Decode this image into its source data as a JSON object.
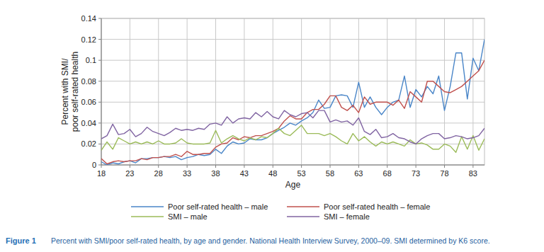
{
  "chart_data": {
    "type": "line",
    "x_label": "Age",
    "y_label": [
      "Percent with SMI/",
      "poor self-rated health"
    ],
    "caption_label": "Figure 1",
    "caption": "Percent with SMI/poor self-rated health, by age and gender. National Health Interview Survey, 2000–09. SMI determined by K6 score.",
    "x": [
      18,
      19,
      20,
      21,
      22,
      23,
      24,
      25,
      26,
      27,
      28,
      29,
      30,
      31,
      32,
      33,
      34,
      35,
      36,
      37,
      38,
      39,
      40,
      41,
      42,
      43,
      44,
      45,
      46,
      47,
      48,
      49,
      50,
      51,
      52,
      53,
      54,
      55,
      56,
      57,
      58,
      59,
      60,
      61,
      62,
      63,
      64,
      65,
      66,
      67,
      68,
      69,
      70,
      71,
      72,
      73,
      74,
      75,
      76,
      77,
      78,
      79,
      80,
      81,
      82,
      83,
      84,
      85
    ],
    "xlim": [
      18,
      85
    ],
    "xticks": [
      18,
      23,
      28,
      33,
      38,
      43,
      48,
      53,
      58,
      63,
      68,
      73,
      78,
      83
    ],
    "ylim": [
      0,
      0.14
    ],
    "yticks": [
      0,
      0.02,
      0.04,
      0.06,
      0.08,
      0.1,
      0.12,
      0.14
    ],
    "grid": true,
    "legend": "bottom",
    "series": [
      {
        "name": "Poor self-rated health – male",
        "color": "#4a86c8",
        "values": [
          0.003,
          0.0,
          0.002,
          0.001,
          0.003,
          0.004,
          0.002,
          0.006,
          0.006,
          0.007,
          0.007,
          0.008,
          0.007,
          0.008,
          0.005,
          0.007,
          0.008,
          0.01,
          0.009,
          0.01,
          0.015,
          0.011,
          0.018,
          0.022,
          0.02,
          0.021,
          0.025,
          0.024,
          0.024,
          0.026,
          0.03,
          0.033,
          0.036,
          0.04,
          0.038,
          0.042,
          0.045,
          0.05,
          0.062,
          0.054,
          0.055,
          0.066,
          0.067,
          0.066,
          0.055,
          0.079,
          0.055,
          0.065,
          0.055,
          0.048,
          0.055,
          0.06,
          0.062,
          0.085,
          0.055,
          0.072,
          0.065,
          0.075,
          0.068,
          0.085,
          0.052,
          0.075,
          0.107,
          0.107,
          0.063,
          0.102,
          0.09,
          0.12
        ]
      },
      {
        "name": "Poor self-rated health – female",
        "color": "#c0504d",
        "values": [
          0.006,
          0.001,
          0.003,
          0.004,
          0.003,
          0.004,
          0.004,
          0.006,
          0.005,
          0.007,
          0.007,
          0.008,
          0.008,
          0.01,
          0.008,
          0.013,
          0.01,
          0.01,
          0.011,
          0.011,
          0.017,
          0.02,
          0.021,
          0.026,
          0.024,
          0.027,
          0.026,
          0.028,
          0.028,
          0.03,
          0.032,
          0.035,
          0.042,
          0.047,
          0.044,
          0.044,
          0.05,
          0.053,
          0.053,
          0.058,
          0.066,
          0.066,
          0.055,
          0.052,
          0.057,
          0.05,
          0.065,
          0.058,
          0.06,
          0.06,
          0.06,
          0.057,
          0.062,
          0.054,
          0.07,
          0.065,
          0.06,
          0.08,
          0.08,
          0.075,
          0.07,
          0.069,
          0.072,
          0.075,
          0.08,
          0.085,
          0.09,
          0.1
        ]
      },
      {
        "name": "SMI – male",
        "color": "#9bbb59",
        "values": [
          0.014,
          0.022,
          0.015,
          0.026,
          0.023,
          0.02,
          0.022,
          0.02,
          0.022,
          0.02,
          0.023,
          0.02,
          0.02,
          0.021,
          0.025,
          0.021,
          0.02,
          0.02,
          0.02,
          0.021,
          0.033,
          0.021,
          0.025,
          0.028,
          0.025,
          0.023,
          0.026,
          0.024,
          0.027,
          0.026,
          0.03,
          0.035,
          0.03,
          0.028,
          0.033,
          0.038,
          0.03,
          0.03,
          0.03,
          0.028,
          0.03,
          0.027,
          0.023,
          0.02,
          0.03,
          0.023,
          0.027,
          0.022,
          0.018,
          0.022,
          0.02,
          0.022,
          0.02,
          0.018,
          0.024,
          0.02,
          0.021,
          0.019,
          0.015,
          0.015,
          0.02,
          0.018,
          0.012,
          0.027,
          0.015,
          0.028,
          0.014,
          0.025
        ]
      },
      {
        "name": "SMI – female",
        "color": "#8064a2",
        "values": [
          0.025,
          0.028,
          0.039,
          0.029,
          0.03,
          0.034,
          0.027,
          0.03,
          0.036,
          0.032,
          0.03,
          0.028,
          0.031,
          0.035,
          0.033,
          0.034,
          0.033,
          0.035,
          0.034,
          0.039,
          0.04,
          0.038,
          0.046,
          0.04,
          0.044,
          0.045,
          0.044,
          0.05,
          0.046,
          0.051,
          0.046,
          0.044,
          0.052,
          0.048,
          0.046,
          0.049,
          0.05,
          0.045,
          0.052,
          0.052,
          0.041,
          0.043,
          0.041,
          0.042,
          0.038,
          0.045,
          0.032,
          0.029,
          0.034,
          0.026,
          0.027,
          0.03,
          0.026,
          0.025,
          0.022,
          0.02,
          0.025,
          0.028,
          0.03,
          0.03,
          0.025,
          0.026,
          0.028,
          0.027,
          0.025,
          0.026,
          0.028,
          0.035
        ]
      }
    ]
  }
}
